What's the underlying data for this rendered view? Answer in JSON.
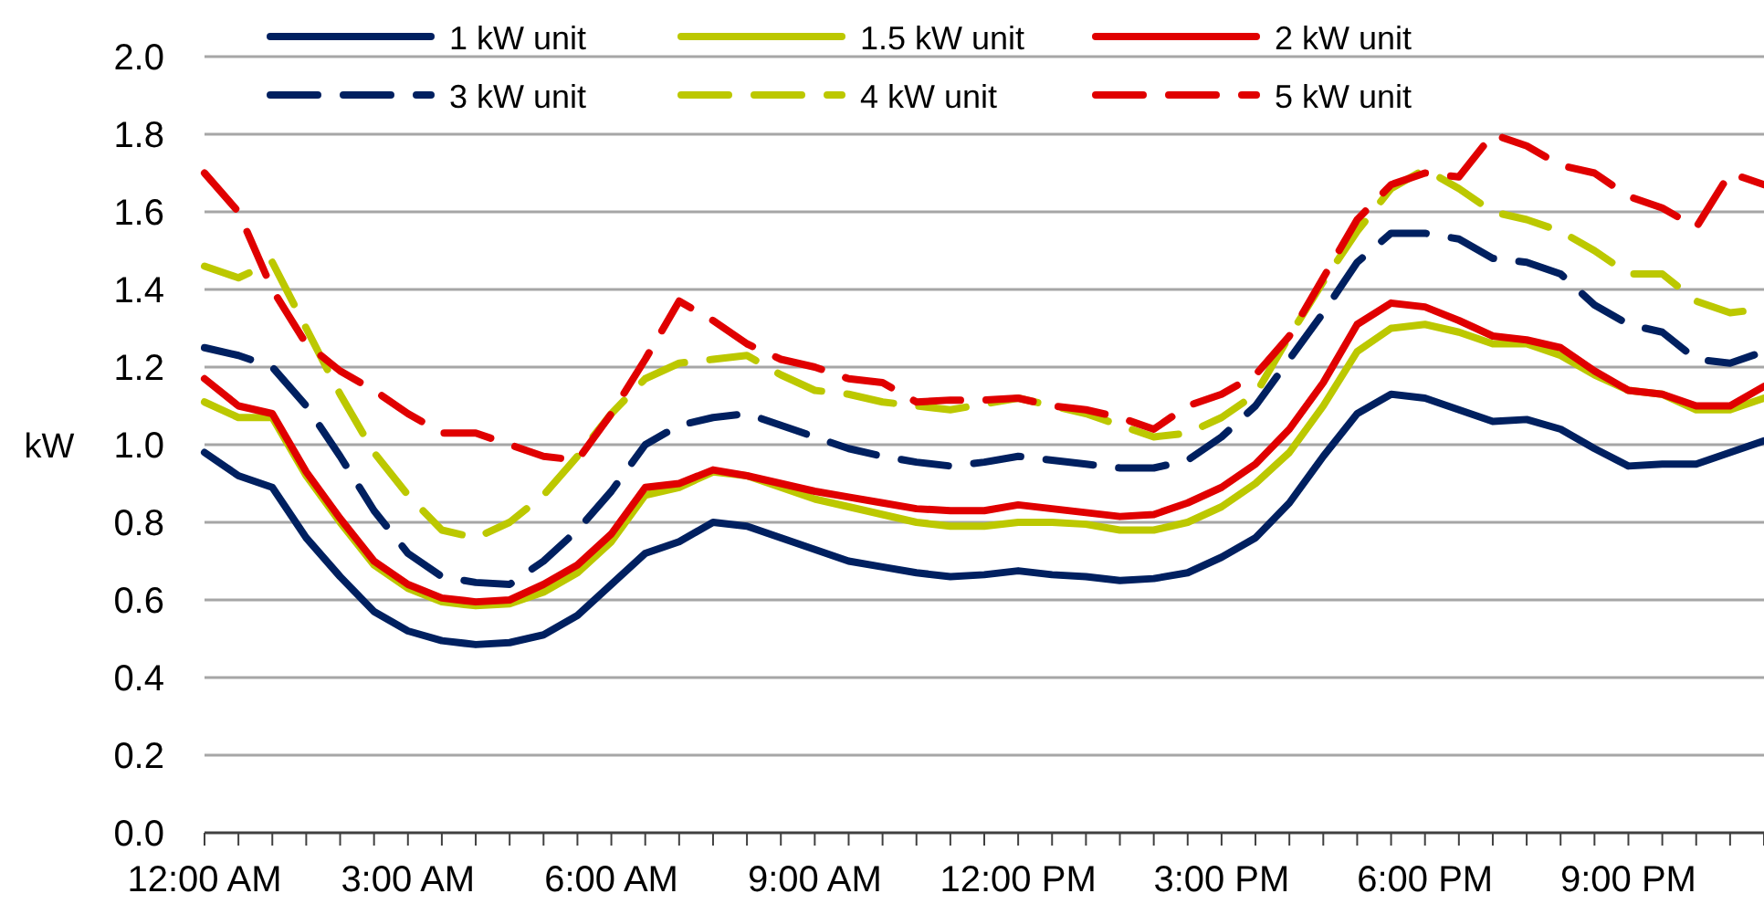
{
  "chart_data": {
    "type": "line",
    "ylabel": "kW",
    "x": [
      0,
      0.5,
      1,
      1.5,
      2,
      2.5,
      3,
      3.5,
      4,
      4.5,
      5,
      5.5,
      6,
      6.5,
      7,
      7.5,
      8,
      8.5,
      9,
      9.5,
      10,
      10.5,
      11,
      11.5,
      12,
      12.5,
      13,
      13.5,
      14,
      14.5,
      15,
      15.5,
      16,
      16.5,
      17,
      17.5,
      18,
      18.5,
      19,
      19.5,
      20,
      20.5,
      21,
      21.5,
      22,
      22.5,
      23
    ],
    "xlim": [
      0,
      23
    ],
    "xticks": [
      {
        "value": 0,
        "label": "12:00 AM"
      },
      {
        "value": 0.5,
        "label": null
      },
      {
        "value": 1,
        "label": null
      },
      {
        "value": 1.5,
        "label": null
      },
      {
        "value": 2,
        "label": null
      },
      {
        "value": 2.5,
        "label": null
      },
      {
        "value": 3,
        "label": "3:00 AM"
      },
      {
        "value": 3.5,
        "label": null
      },
      {
        "value": 4,
        "label": null
      },
      {
        "value": 4.5,
        "label": null
      },
      {
        "value": 5,
        "label": null
      },
      {
        "value": 5.5,
        "label": null
      },
      {
        "value": 6,
        "label": "6:00 AM"
      },
      {
        "value": 6.5,
        "label": null
      },
      {
        "value": 7,
        "label": null
      },
      {
        "value": 7.5,
        "label": null
      },
      {
        "value": 8,
        "label": null
      },
      {
        "value": 8.5,
        "label": null
      },
      {
        "value": 9,
        "label": "9:00 AM"
      },
      {
        "value": 9.5,
        "label": null
      },
      {
        "value": 10,
        "label": null
      },
      {
        "value": 10.5,
        "label": null
      },
      {
        "value": 11,
        "label": null
      },
      {
        "value": 11.5,
        "label": null
      },
      {
        "value": 12,
        "label": "12:00 PM"
      },
      {
        "value": 12.5,
        "label": null
      },
      {
        "value": 13,
        "label": null
      },
      {
        "value": 13.5,
        "label": null
      },
      {
        "value": 14,
        "label": null
      },
      {
        "value": 14.5,
        "label": null
      },
      {
        "value": 15,
        "label": "3:00 PM"
      },
      {
        "value": 15.5,
        "label": null
      },
      {
        "value": 16,
        "label": null
      },
      {
        "value": 16.5,
        "label": null
      },
      {
        "value": 17,
        "label": null
      },
      {
        "value": 17.5,
        "label": null
      },
      {
        "value": 18,
        "label": "6:00 PM"
      },
      {
        "value": 18.5,
        "label": null
      },
      {
        "value": 19,
        "label": null
      },
      {
        "value": 19.5,
        "label": null
      },
      {
        "value": 20,
        "label": null
      },
      {
        "value": 20.5,
        "label": null
      },
      {
        "value": 21,
        "label": "9:00 PM"
      },
      {
        "value": 21.5,
        "label": null
      },
      {
        "value": 22,
        "label": null
      },
      {
        "value": 22.5,
        "label": null
      },
      {
        "value": 23,
        "label": null
      }
    ],
    "ylim": [
      0,
      2.0
    ],
    "yticks": [
      {
        "value": 0,
        "label": "0.0"
      },
      {
        "value": 0.2,
        "label": "0.2"
      },
      {
        "value": 0.4,
        "label": "0.4"
      },
      {
        "value": 0.6,
        "label": "0.6"
      },
      {
        "value": 0.8,
        "label": "0.8"
      },
      {
        "value": 1.0,
        "label": "1.0"
      },
      {
        "value": 1.2,
        "label": "1.2"
      },
      {
        "value": 1.4,
        "label": "1.4"
      },
      {
        "value": 1.6,
        "label": "1.6"
      },
      {
        "value": 1.8,
        "label": "1.8"
      },
      {
        "value": 2.0,
        "label": "2.0"
      }
    ],
    "grid": "y",
    "legend": "top",
    "series": [
      {
        "name": "1 kW unit",
        "color": "#002060",
        "line_style": "solid",
        "values": [
          0.98,
          0.92,
          0.89,
          0.76,
          0.66,
          0.57,
          0.52,
          0.495,
          0.485,
          0.49,
          0.51,
          0.56,
          0.64,
          0.72,
          0.75,
          0.8,
          0.79,
          0.76,
          0.73,
          0.7,
          0.685,
          0.67,
          0.66,
          0.665,
          0.675,
          0.665,
          0.66,
          0.65,
          0.655,
          0.67,
          0.71,
          0.76,
          0.85,
          0.97,
          1.08,
          1.13,
          1.12,
          1.09,
          1.06,
          1.065,
          1.04,
          0.99,
          0.945,
          0.95,
          0.95,
          0.98,
          1.01
        ]
      },
      {
        "name": "1.5 kW unit",
        "color": "#bcc800",
        "line_style": "solid",
        "values": [
          1.11,
          1.07,
          1.07,
          0.92,
          0.8,
          0.69,
          0.63,
          0.595,
          0.585,
          0.59,
          0.62,
          0.67,
          0.75,
          0.87,
          0.89,
          0.93,
          0.92,
          0.89,
          0.86,
          0.84,
          0.82,
          0.8,
          0.79,
          0.79,
          0.8,
          0.8,
          0.795,
          0.78,
          0.78,
          0.8,
          0.84,
          0.9,
          0.98,
          1.1,
          1.24,
          1.3,
          1.31,
          1.29,
          1.26,
          1.26,
          1.23,
          1.18,
          1.14,
          1.13,
          1.09,
          1.09,
          1.12
        ]
      },
      {
        "name": "2 kW unit",
        "color": "#e00000",
        "line_style": "solid",
        "values": [
          1.17,
          1.1,
          1.08,
          0.93,
          0.81,
          0.7,
          0.64,
          0.605,
          0.595,
          0.6,
          0.64,
          0.69,
          0.77,
          0.89,
          0.9,
          0.935,
          0.92,
          0.9,
          0.88,
          0.865,
          0.85,
          0.835,
          0.83,
          0.83,
          0.845,
          0.835,
          0.825,
          0.815,
          0.82,
          0.85,
          0.89,
          0.95,
          1.04,
          1.16,
          1.31,
          1.365,
          1.355,
          1.32,
          1.28,
          1.27,
          1.25,
          1.19,
          1.14,
          1.13,
          1.1,
          1.1,
          1.15
        ]
      },
      {
        "name": "3 kW unit",
        "color": "#002060",
        "line_style": "dashed",
        "values": [
          1.25,
          1.23,
          1.2,
          1.1,
          0.97,
          0.83,
          0.72,
          0.66,
          0.645,
          0.64,
          0.7,
          0.78,
          0.88,
          1.0,
          1.05,
          1.07,
          1.08,
          1.05,
          1.02,
          0.99,
          0.97,
          0.955,
          0.945,
          0.955,
          0.97,
          0.96,
          0.95,
          0.94,
          0.94,
          0.96,
          1.02,
          1.1,
          1.22,
          1.34,
          1.47,
          1.545,
          1.545,
          1.53,
          1.48,
          1.47,
          1.44,
          1.36,
          1.31,
          1.29,
          1.22,
          1.21,
          1.24
        ]
      },
      {
        "name": "4 kW unit",
        "color": "#bcc800",
        "line_style": "dashed",
        "values": [
          1.46,
          1.43,
          1.47,
          1.3,
          1.13,
          0.98,
          0.87,
          0.78,
          0.76,
          0.8,
          0.87,
          0.97,
          1.08,
          1.17,
          1.21,
          1.22,
          1.23,
          1.18,
          1.14,
          1.13,
          1.11,
          1.1,
          1.09,
          1.105,
          1.12,
          1.1,
          1.08,
          1.05,
          1.02,
          1.03,
          1.07,
          1.13,
          1.28,
          1.42,
          1.55,
          1.66,
          1.71,
          1.66,
          1.6,
          1.58,
          1.55,
          1.5,
          1.44,
          1.44,
          1.37,
          1.34,
          1.35
        ]
      },
      {
        "name": "5 kW unit",
        "color": "#e00000",
        "line_style": "dashed",
        "values": [
          1.7,
          1.6,
          1.4,
          1.26,
          1.19,
          1.14,
          1.08,
          1.03,
          1.03,
          1.0,
          0.97,
          0.96,
          1.08,
          1.22,
          1.37,
          1.32,
          1.26,
          1.22,
          1.2,
          1.17,
          1.16,
          1.11,
          1.115,
          1.115,
          1.12,
          1.1,
          1.09,
          1.07,
          1.04,
          1.1,
          1.13,
          1.18,
          1.28,
          1.43,
          1.58,
          1.67,
          1.7,
          1.69,
          1.8,
          1.77,
          1.72,
          1.7,
          1.64,
          1.61,
          1.56,
          1.7,
          1.67
        ]
      }
    ]
  }
}
